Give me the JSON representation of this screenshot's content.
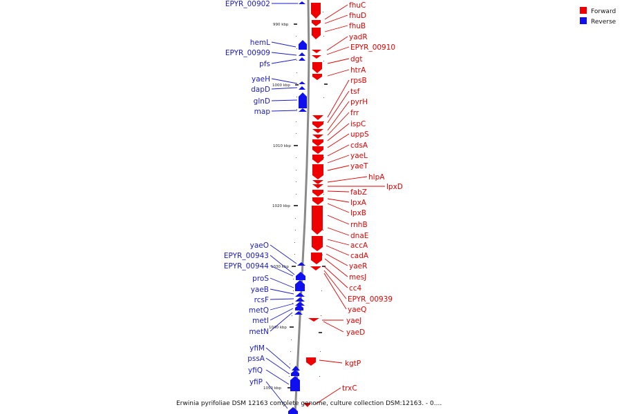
{
  "legend": {
    "forward": "Forward",
    "reverse": "Reverse",
    "forward_color": "#ee0000",
    "reverse_color": "#1010ee"
  },
  "caption": "Erwinia pyrifoliae DSM 12163 complete genome, culture collection DSM:12163. - 0....",
  "kbp_ticks": [
    "990 kbp",
    "1000 kbp",
    "1010 kbp",
    "1020 kbp",
    "1030 kbp",
    "1040 kbp",
    "1050 kbp"
  ],
  "reverse_genes": [
    "EPYR_00902",
    "hemL",
    "EPYR_00909",
    "pfs",
    "yaeH",
    "dapD",
    "glnD",
    "map",
    "yaeO",
    "EPYR_00943",
    "EPYR_00944",
    "proS",
    "yaeB",
    "rcsF",
    "metQ",
    "metI",
    "metN",
    "yfiM",
    "pssA",
    "yfiQ",
    "yfiP"
  ],
  "forward_genes": [
    "fhuC",
    "fhuD",
    "fhuB",
    "yadR",
    "EPYR_00910",
    "dgt",
    "htrA",
    "rpsB",
    "tsf",
    "pyrH",
    "frr",
    "ispC",
    "uppS",
    "cdsA",
    "yaeL",
    "yaeT",
    "hlpA",
    "lpxD",
    "fabZ",
    "lpxA",
    "lpxB",
    "rnhB",
    "dnaE",
    "accA",
    "cadA",
    "yaeR",
    "mesJ",
    "cc4",
    "EPYR_00939",
    "yaeQ",
    "yaeJ",
    "yaeD",
    "kgtP",
    "trxC"
  ]
}
